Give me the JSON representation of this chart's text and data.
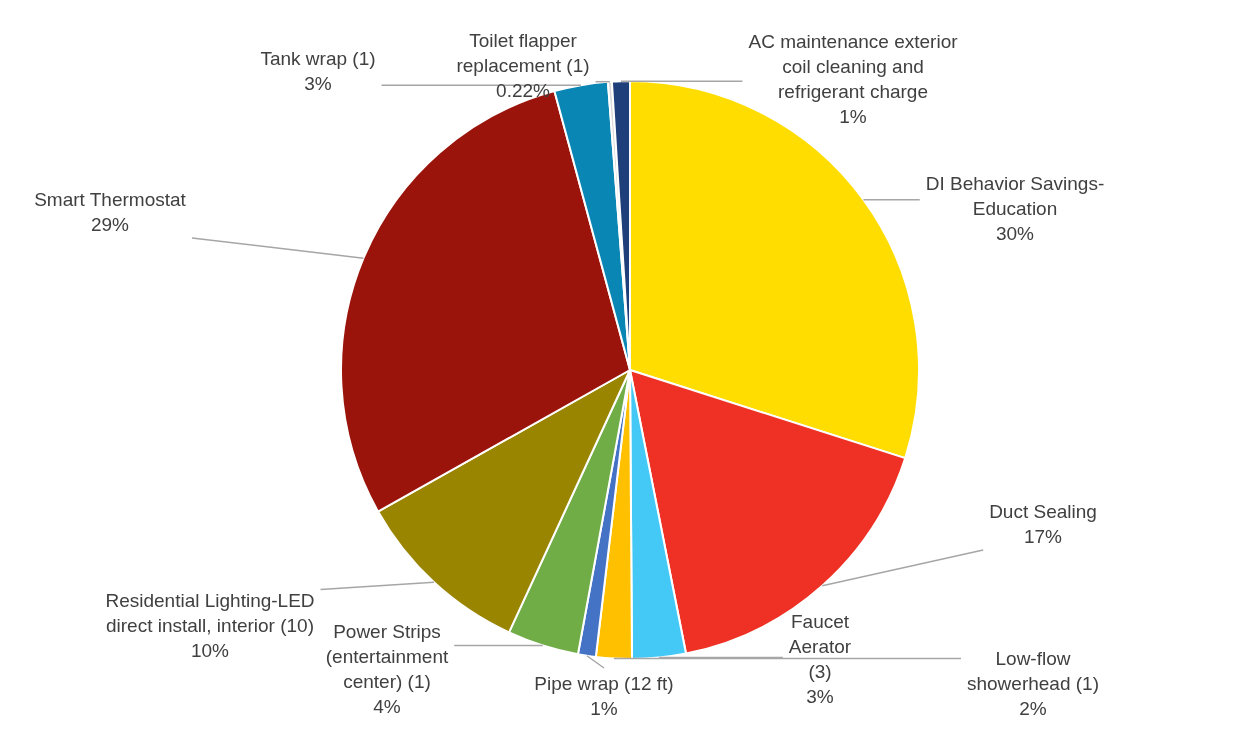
{
  "chart_data": {
    "type": "pie",
    "categories": [
      "DI Behavior Savings-Education",
      "Duct Sealing",
      "Faucet Aerator (3)",
      "Low-flow showerhead (1)",
      "Pipe wrap (12 ft)",
      "Power Strips (entertainment center) (1)",
      "Residential Lighting-LED direct install, interior (10)",
      "Smart Thermostat",
      "Tank wrap (1)",
      "Toilet flapper replacement (1)",
      "AC maintenance exterior coil cleaning and refrigerant charge"
    ],
    "values": [
      30,
      17,
      3,
      2,
      1,
      4,
      10,
      29,
      3,
      0.22,
      1
    ],
    "value_labels": [
      "30%",
      "17%",
      "3%",
      "2%",
      "1%",
      "4%",
      "10%",
      "29%",
      "3%",
      "0.22%",
      "1%"
    ],
    "colors": [
      "#ffdd00",
      "#ee3124",
      "#44c8f5",
      "#ffc000",
      "#4472c4",
      "#70ad47",
      "#998500",
      "#9a140c",
      "#0a86b5",
      "#d9d9d9",
      "#1f3f7a"
    ],
    "legend": false
  }
}
